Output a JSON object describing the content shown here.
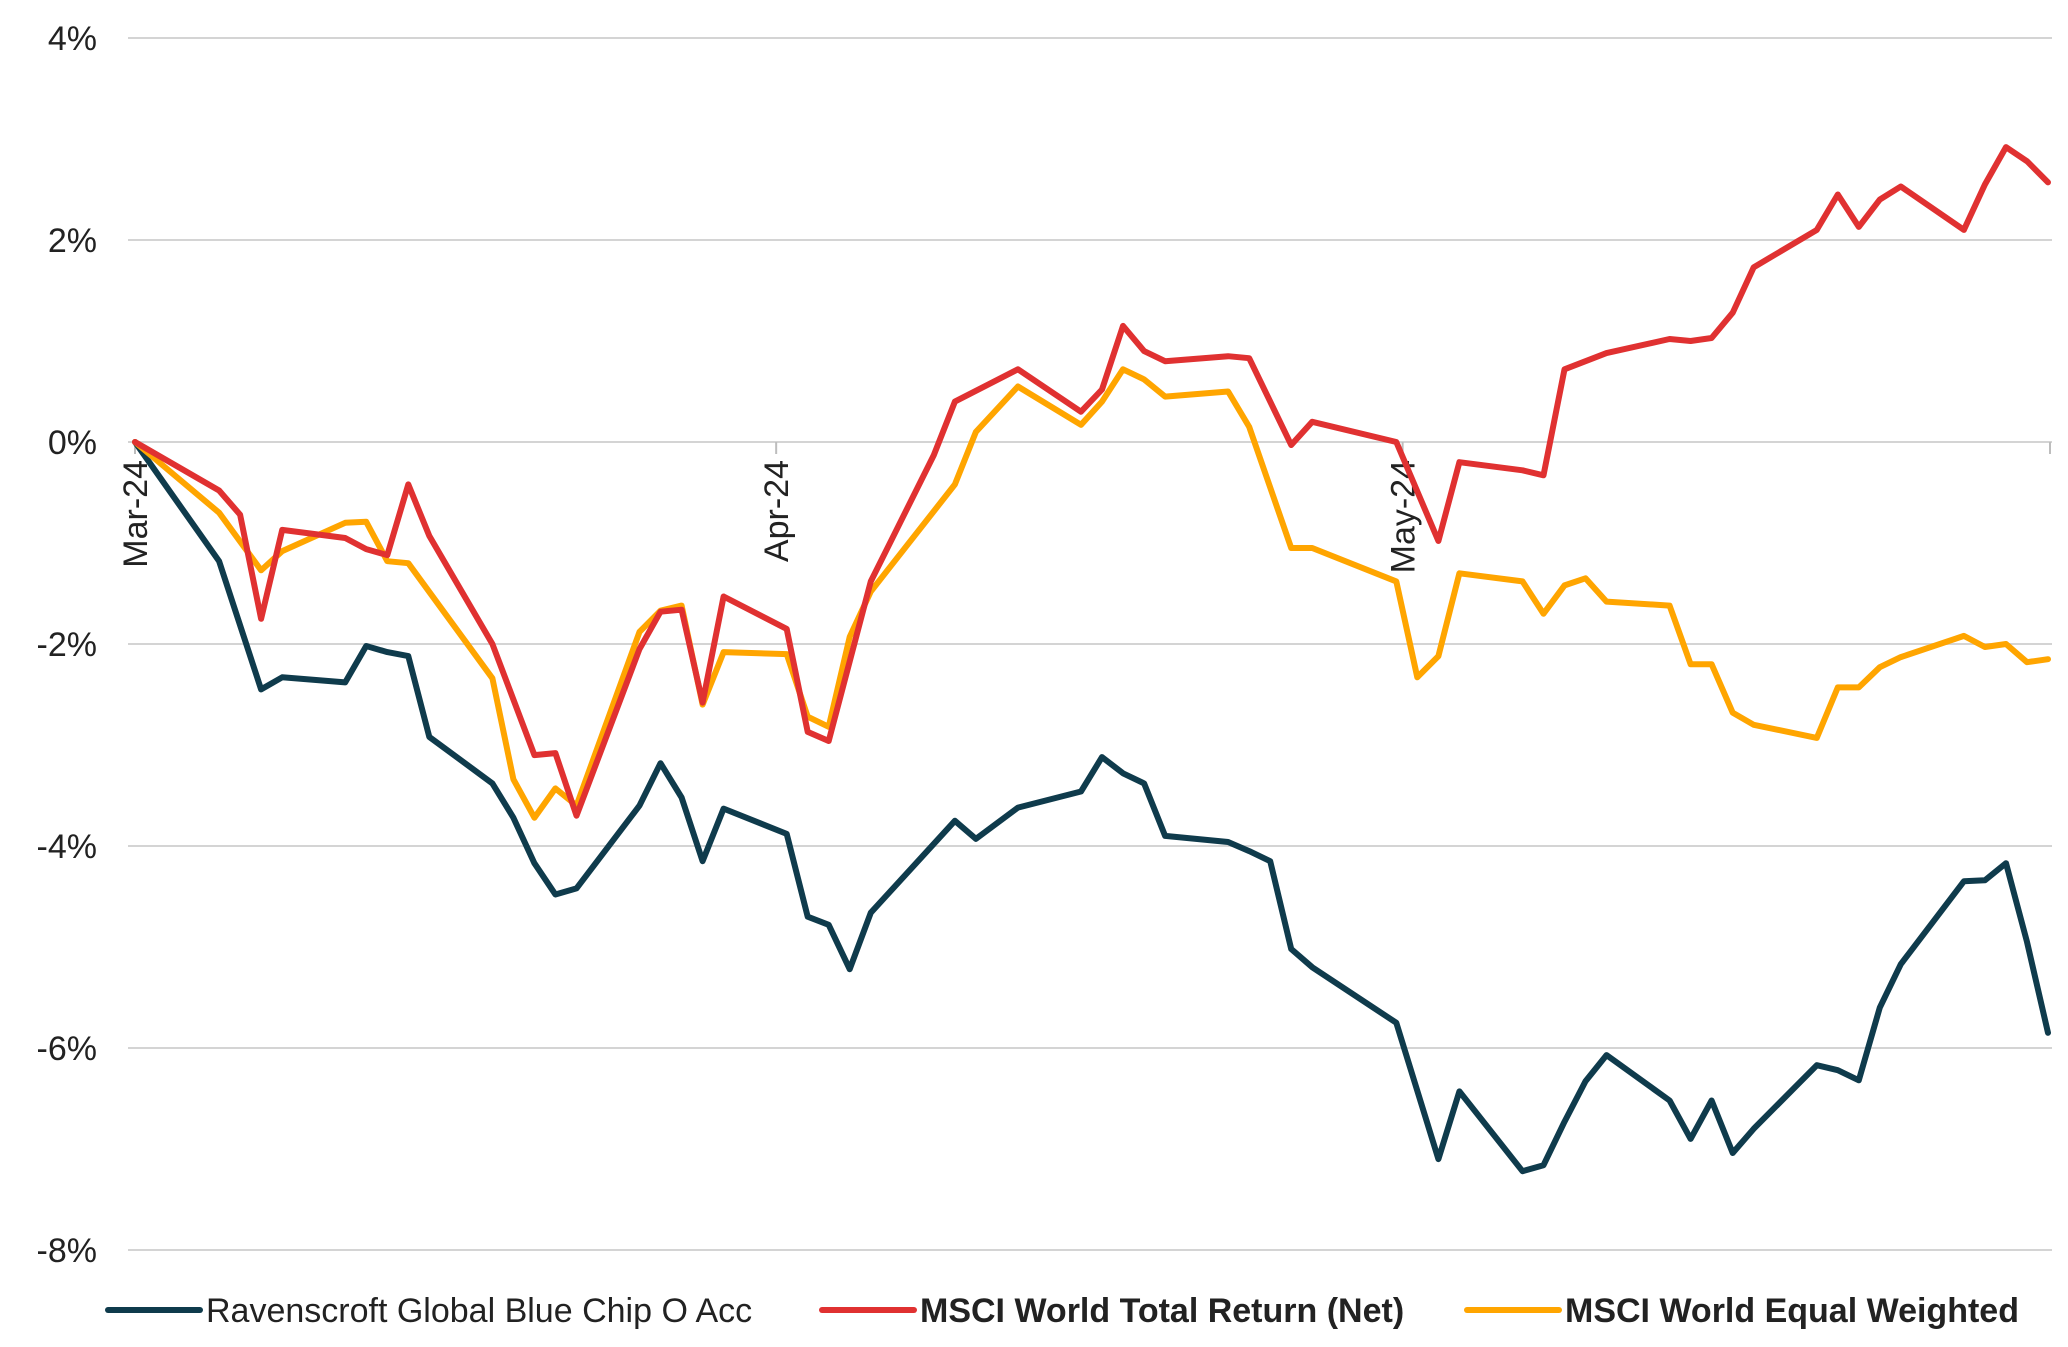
{
  "chart_data": {
    "type": "line",
    "title": "",
    "xlabel": "",
    "ylabel": "",
    "ylim": [
      -8,
      4
    ],
    "yticks": [
      4,
      2,
      0,
      -2,
      -4,
      -6,
      -8
    ],
    "ytick_labels": [
      "4%",
      "2%",
      "0%",
      "-2%",
      "-4%",
      "-6%",
      "-8%"
    ],
    "xlim": [
      0,
      91
    ],
    "xtick_positions": [
      0,
      30.5,
      60.3
    ],
    "xtick_labels": [
      "Mar-24",
      "Apr-24",
      "May-24"
    ],
    "grid": true,
    "legend_position": "bottom",
    "series": [
      {
        "name": "Ravenscroft Global Blue Chip O Acc",
        "color": "#0f3b4c",
        "points": [
          [
            0,
            0
          ],
          [
            4,
            -1.18
          ],
          [
            6,
            -2.45
          ],
          [
            7,
            -2.33
          ],
          [
            10,
            -2.38
          ],
          [
            11,
            -2.02
          ],
          [
            12,
            -2.08
          ],
          [
            13,
            -2.12
          ],
          [
            14,
            -2.92
          ],
          [
            17,
            -3.38
          ],
          [
            18,
            -3.72
          ],
          [
            19,
            -4.17
          ],
          [
            20,
            -4.48
          ],
          [
            21,
            -4.42
          ],
          [
            24,
            -3.6
          ],
          [
            25,
            -3.18
          ],
          [
            26,
            -3.52
          ],
          [
            27,
            -4.15
          ],
          [
            28,
            -3.63
          ],
          [
            31,
            -3.88
          ],
          [
            32,
            -4.7
          ],
          [
            33,
            -4.78
          ],
          [
            34,
            -5.22
          ],
          [
            35,
            -4.66
          ],
          [
            39,
            -3.75
          ],
          [
            40,
            -3.93
          ],
          [
            42,
            -3.62
          ],
          [
            45,
            -3.46
          ],
          [
            46,
            -3.12
          ],
          [
            47,
            -3.28
          ],
          [
            48,
            -3.38
          ],
          [
            49,
            -3.9
          ],
          [
            52,
            -3.96
          ],
          [
            53,
            -4.05
          ],
          [
            54,
            -4.15
          ],
          [
            55,
            -5.02
          ],
          [
            56,
            -5.2
          ],
          [
            60,
            -5.75
          ],
          [
            62,
            -7.1
          ],
          [
            63,
            -6.43
          ],
          [
            66,
            -7.22
          ],
          [
            67,
            -7.16
          ],
          [
            68,
            -6.73
          ],
          [
            69,
            -6.33
          ],
          [
            70,
            -6.07
          ],
          [
            73,
            -6.52
          ],
          [
            74,
            -6.9
          ],
          [
            75,
            -6.52
          ],
          [
            76,
            -7.04
          ],
          [
            77,
            -6.8
          ],
          [
            80,
            -6.17
          ],
          [
            81,
            -6.22
          ],
          [
            82,
            -6.32
          ],
          [
            83,
            -5.6
          ],
          [
            84,
            -5.17
          ],
          [
            87,
            -4.35
          ],
          [
            88,
            -4.34
          ],
          [
            89,
            -4.17
          ],
          [
            90,
            -4.95
          ],
          [
            91,
            -5.85
          ]
        ]
      },
      {
        "name": "MSCI World Total Return (Net)",
        "color": "#e03131",
        "points": [
          [
            0,
            0
          ],
          [
            4,
            -0.48
          ],
          [
            5,
            -0.72
          ],
          [
            6,
            -1.75
          ],
          [
            7,
            -0.87
          ],
          [
            10,
            -0.95
          ],
          [
            11,
            -1.06
          ],
          [
            12,
            -1.12
          ],
          [
            13,
            -0.42
          ],
          [
            14,
            -0.93
          ],
          [
            17,
            -2.0
          ],
          [
            19,
            -3.1
          ],
          [
            20,
            -3.08
          ],
          [
            21,
            -3.7
          ],
          [
            24,
            -2.05
          ],
          [
            25,
            -1.68
          ],
          [
            26,
            -1.66
          ],
          [
            27,
            -2.58
          ],
          [
            28,
            -1.53
          ],
          [
            31,
            -1.85
          ],
          [
            32,
            -2.87
          ],
          [
            33,
            -2.96
          ],
          [
            35,
            -1.38
          ],
          [
            38,
            -0.13
          ],
          [
            39,
            0.4
          ],
          [
            42,
            0.72
          ],
          [
            45,
            0.3
          ],
          [
            46,
            0.52
          ],
          [
            47,
            1.15
          ],
          [
            48,
            0.9
          ],
          [
            49,
            0.8
          ],
          [
            52,
            0.85
          ],
          [
            53,
            0.83
          ],
          [
            55,
            -0.03
          ],
          [
            56,
            0.2
          ],
          [
            60,
            0.0
          ],
          [
            62,
            -0.98
          ],
          [
            63,
            -0.2
          ],
          [
            66,
            -0.28
          ],
          [
            67,
            -0.33
          ],
          [
            68,
            0.72
          ],
          [
            70,
            0.88
          ],
          [
            73,
            1.02
          ],
          [
            74,
            1.0
          ],
          [
            75,
            1.03
          ],
          [
            76,
            1.28
          ],
          [
            77,
            1.73
          ],
          [
            80,
            2.1
          ],
          [
            81,
            2.45
          ],
          [
            82,
            2.13
          ],
          [
            83,
            2.4
          ],
          [
            84,
            2.53
          ],
          [
            87,
            2.1
          ],
          [
            88,
            2.55
          ],
          [
            89,
            2.92
          ],
          [
            90,
            2.78
          ],
          [
            91,
            2.57
          ]
        ]
      },
      {
        "name": "MSCI World Equal Weighted",
        "color": "#ffa500",
        "points": [
          [
            0,
            0
          ],
          [
            4,
            -0.7
          ],
          [
            6,
            -1.27
          ],
          [
            7,
            -1.08
          ],
          [
            10,
            -0.8
          ],
          [
            11,
            -0.79
          ],
          [
            12,
            -1.18
          ],
          [
            13,
            -1.2
          ],
          [
            17,
            -2.34
          ],
          [
            18,
            -3.34
          ],
          [
            19,
            -3.72
          ],
          [
            20,
            -3.43
          ],
          [
            21,
            -3.6
          ],
          [
            24,
            -1.88
          ],
          [
            25,
            -1.67
          ],
          [
            26,
            -1.62
          ],
          [
            27,
            -2.6
          ],
          [
            28,
            -2.08
          ],
          [
            31,
            -2.1
          ],
          [
            32,
            -2.72
          ],
          [
            33,
            -2.82
          ],
          [
            34,
            -1.93
          ],
          [
            35,
            -1.48
          ],
          [
            39,
            -0.42
          ],
          [
            40,
            0.1
          ],
          [
            42,
            0.55
          ],
          [
            45,
            0.17
          ],
          [
            46,
            0.4
          ],
          [
            47,
            0.72
          ],
          [
            48,
            0.62
          ],
          [
            49,
            0.45
          ],
          [
            52,
            0.5
          ],
          [
            53,
            0.15
          ],
          [
            55,
            -1.05
          ],
          [
            56,
            -1.05
          ],
          [
            60,
            -1.38
          ],
          [
            61,
            -2.33
          ],
          [
            62,
            -2.12
          ],
          [
            63,
            -1.3
          ],
          [
            66,
            -1.38
          ],
          [
            67,
            -1.7
          ],
          [
            68,
            -1.42
          ],
          [
            69,
            -1.35
          ],
          [
            70,
            -1.58
          ],
          [
            73,
            -1.62
          ],
          [
            74,
            -2.2
          ],
          [
            75,
            -2.2
          ],
          [
            76,
            -2.68
          ],
          [
            77,
            -2.8
          ],
          [
            80,
            -2.93
          ],
          [
            81,
            -2.43
          ],
          [
            82,
            -2.43
          ],
          [
            83,
            -2.23
          ],
          [
            84,
            -2.13
          ],
          [
            87,
            -1.92
          ],
          [
            88,
            -2.03
          ],
          [
            89,
            -2.0
          ],
          [
            90,
            -2.18
          ],
          [
            91,
            -2.15
          ]
        ]
      }
    ]
  }
}
